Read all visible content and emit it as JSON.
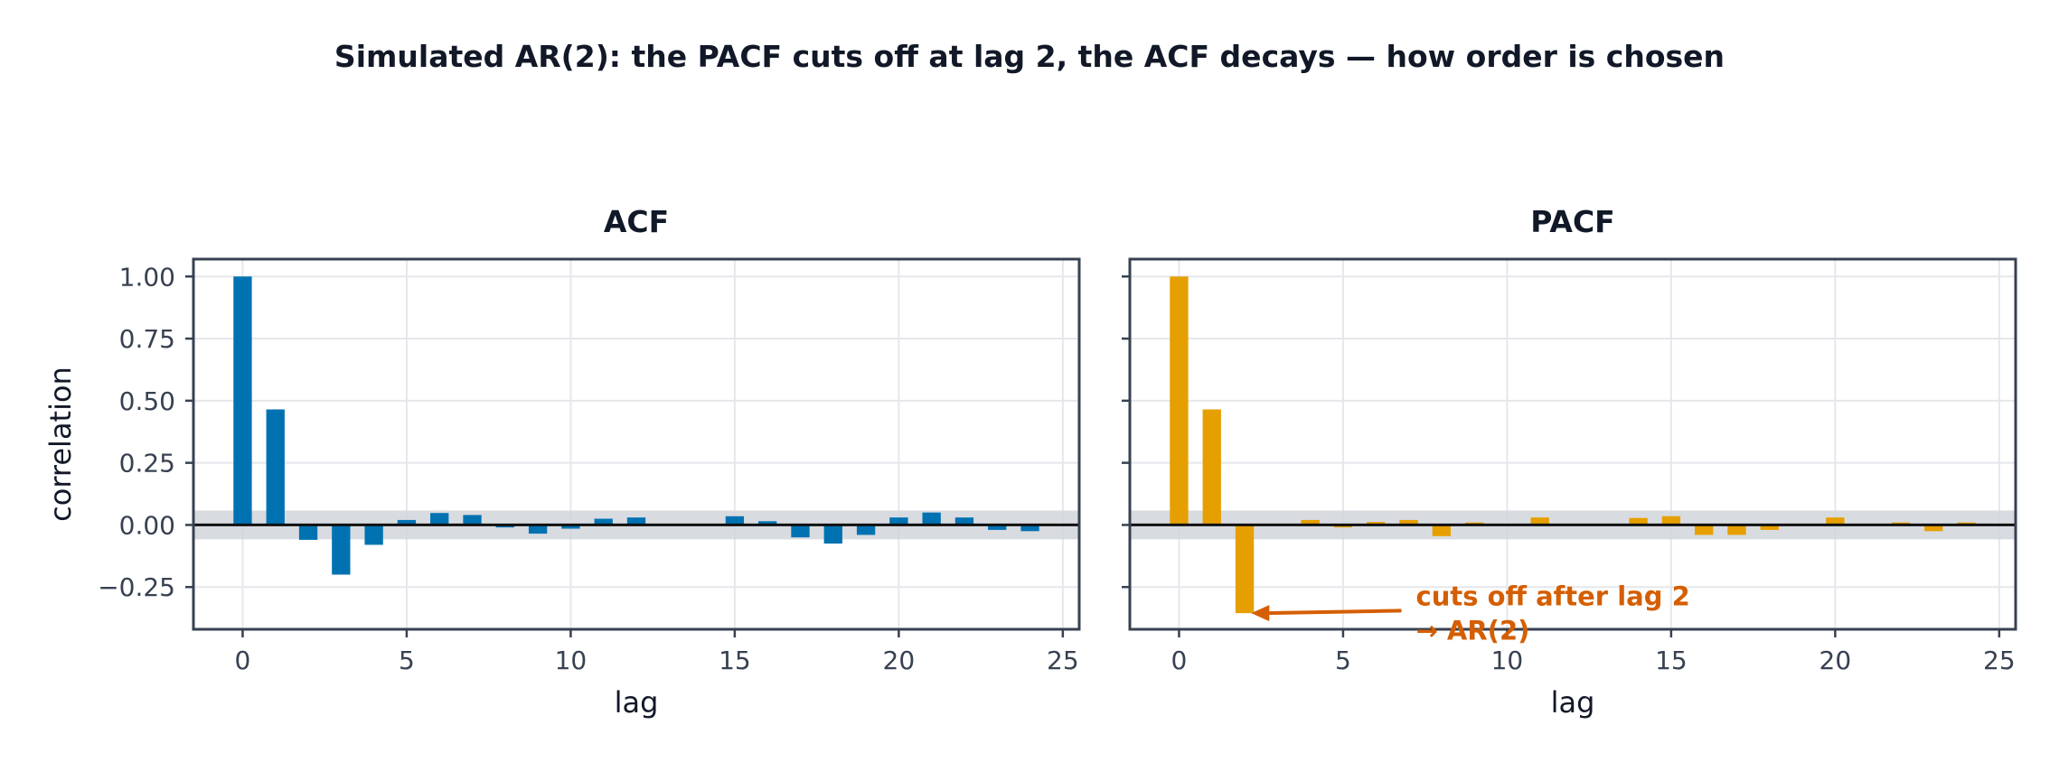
{
  "title": "Simulated AR(2): the PACF cuts off at lag 2, the ACF decays — how order is chosen",
  "chart_data": [
    {
      "type": "bar",
      "title": "ACF",
      "xlabel": "lag",
      "ylabel": "correlation",
      "xlim": [
        -1.5,
        25.5
      ],
      "ylim": [
        -0.42,
        1.07
      ],
      "xticks": [
        0,
        5,
        10,
        15,
        20,
        25
      ],
      "xtick_labels": [
        "0",
        "5",
        "10",
        "15",
        "20",
        "25"
      ],
      "yticks": [
        -0.25,
        0,
        0.25,
        0.5,
        0.75,
        1.0
      ],
      "ytick_labels": [
        "−0.25",
        "0.00",
        "0.25",
        "0.50",
        "0.75",
        "1.00"
      ],
      "grid": true,
      "color": "#0072B2",
      "confidence_band": 0.058,
      "band_color": "#d1d5db",
      "lags": [
        0,
        1,
        2,
        3,
        4,
        5,
        6,
        7,
        8,
        9,
        10,
        11,
        12,
        13,
        14,
        15,
        16,
        17,
        18,
        19,
        20,
        21,
        22,
        23,
        24
      ],
      "values": [
        1.0,
        0.465,
        -0.06,
        -0.2,
        -0.08,
        0.02,
        0.048,
        0.04,
        -0.01,
        -0.035,
        -0.015,
        0.025,
        0.03,
        0.0,
        0.0,
        0.035,
        0.015,
        -0.05,
        -0.075,
        -0.04,
        0.03,
        0.05,
        0.03,
        -0.02,
        -0.025
      ]
    },
    {
      "type": "bar",
      "title": "PACF",
      "xlabel": "lag",
      "ylabel": "",
      "xlim": [
        -1.5,
        25.5
      ],
      "ylim": [
        -0.42,
        1.07
      ],
      "xticks": [
        0,
        5,
        10,
        15,
        20,
        25
      ],
      "xtick_labels": [
        "0",
        "5",
        "10",
        "15",
        "20",
        "25"
      ],
      "yticks": [
        -0.25,
        0,
        0.25,
        0.5,
        0.75,
        1.0
      ],
      "ytick_labels": [
        "",
        "",
        "",
        "",
        "",
        ""
      ],
      "grid": true,
      "color": "#E69F00",
      "confidence_band": 0.058,
      "band_color": "#d1d5db",
      "lags": [
        0,
        1,
        2,
        3,
        4,
        5,
        6,
        7,
        8,
        9,
        10,
        11,
        12,
        13,
        14,
        15,
        16,
        17,
        18,
        19,
        20,
        21,
        22,
        23,
        24
      ],
      "values": [
        1.0,
        0.465,
        -0.355,
        0.0,
        0.02,
        -0.01,
        0.012,
        0.02,
        -0.045,
        0.01,
        0.0,
        0.03,
        0.0,
        0.0,
        0.028,
        0.035,
        -0.04,
        -0.04,
        -0.02,
        0.0,
        0.03,
        0.0,
        0.01,
        -0.025,
        0.01
      ],
      "annotation": {
        "text_lines": [
          "cuts off after lag 2",
          "→ AR(2)"
        ],
        "color": "#D55E00",
        "target": {
          "lag": 2.2,
          "value": -0.355
        },
        "text_anchor": {
          "lag": 7.0,
          "value": -0.345
        }
      }
    }
  ]
}
